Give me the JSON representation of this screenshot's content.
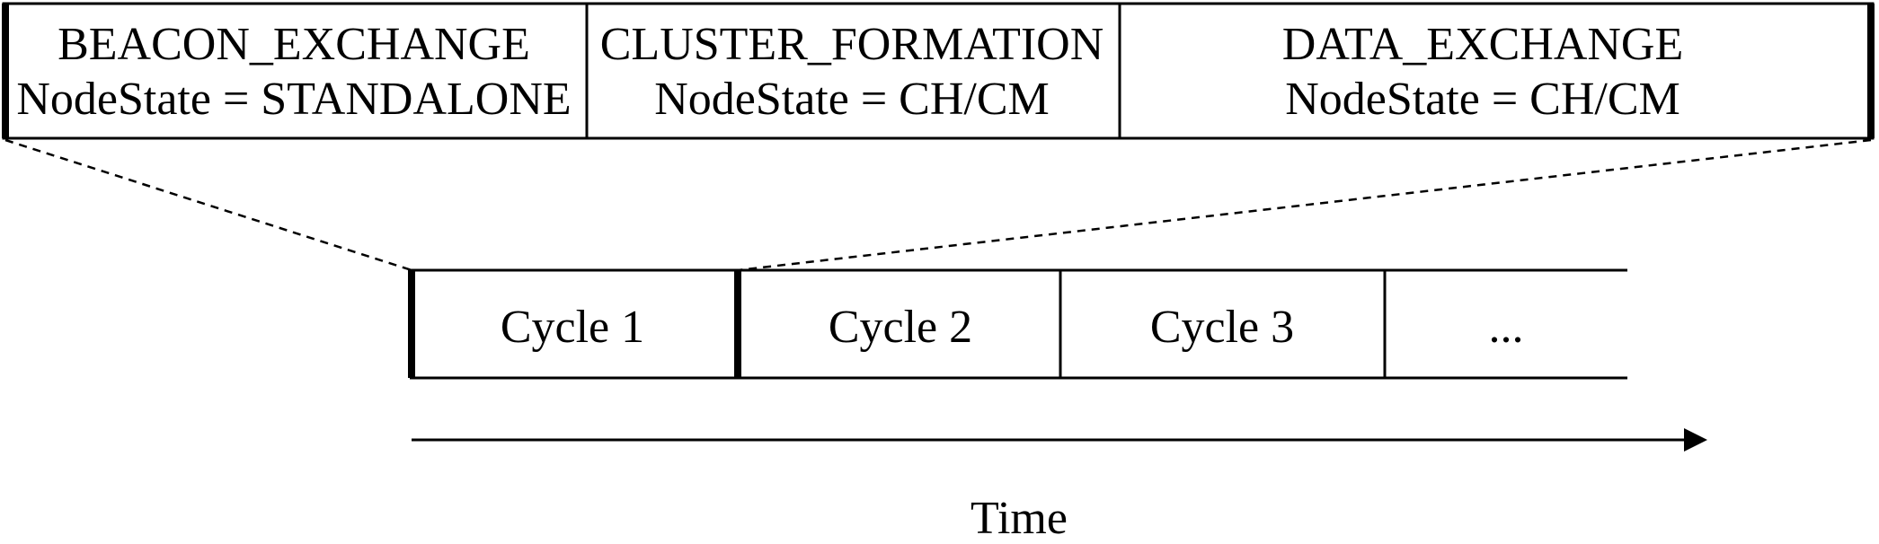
{
  "phases": [
    {
      "name": "BEACON_EXCHANGE",
      "state": "NodeState = STANDALONE"
    },
    {
      "name": "CLUSTER_FORMATION",
      "state": "NodeState = CH/CM"
    },
    {
      "name": "DATA_EXCHANGE",
      "state": "NodeState = CH/CM"
    }
  ],
  "cycles": [
    "Cycle 1",
    "Cycle 2",
    "Cycle 3",
    "..."
  ],
  "axis": {
    "label": "Time"
  }
}
